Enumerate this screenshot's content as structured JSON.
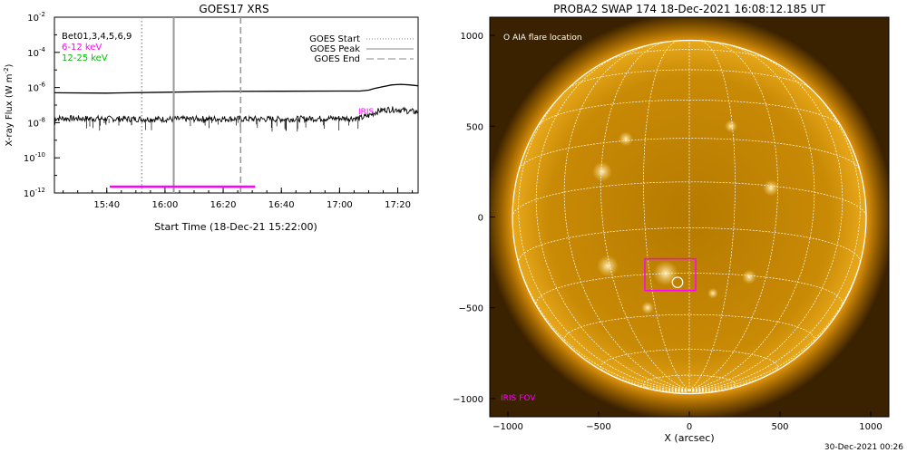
{
  "timestamp": "30-Dec-2021 00:26",
  "chart_data": [
    {
      "type": "line",
      "title": "GOES17 XRS",
      "xlabel": "Start Time (18-Dec-21 15:22:00)",
      "ylabel": "X-ray Flux (W m-2)",
      "ylabel_parts": [
        "X-ray Flux (W m",
        "-2",
        ")"
      ],
      "yscale": "log",
      "ylim_exp": [
        -12,
        -2
      ],
      "ytick_exps": [
        -12,
        -10,
        -8,
        -6,
        -4,
        -2
      ],
      "ytick_base": "10",
      "xlim": [
        "15:22",
        "17:27"
      ],
      "xticks": [
        "15:40",
        "16:00",
        "16:20",
        "16:40",
        "17:00",
        "17:20"
      ],
      "left_legend": [
        {
          "text": "Bet01,3,4,5,6,9",
          "color": "#000000"
        },
        {
          "text": "6-12 keV",
          "color": "#ff00ff"
        },
        {
          "text": "12-25 keV",
          "color": "#00c000"
        }
      ],
      "right_legend": [
        {
          "text": "GOES Start",
          "style": "dotted"
        },
        {
          "text": "GOES Peak",
          "style": "solid"
        },
        {
          "text": "GOES End",
          "style": "dashed"
        }
      ],
      "goes_start": "15:52",
      "goes_peak": "16:03",
      "goes_end": "16:26",
      "iris_label": "IRIS",
      "iris_interval": [
        "15:41",
        "16:31"
      ],
      "series": [
        {
          "name": "Bet01,3,4,5,6,9",
          "color": "#000000",
          "x": [
            "15:22",
            "15:40",
            "16:00",
            "16:20",
            "16:40",
            "17:00",
            "17:07",
            "17:10",
            "17:12",
            "17:15",
            "17:18",
            "17:21",
            "17:24",
            "17:27"
          ],
          "y_exp": [
            -6.3,
            -6.32,
            -6.27,
            -6.22,
            -6.21,
            -6.2,
            -6.2,
            -6.15,
            -6.05,
            -5.95,
            -5.85,
            -5.82,
            -5.85,
            -5.9
          ]
        },
        {
          "name": "noisy-band",
          "color": "#000000",
          "x": [
            "15:22",
            "15:40",
            "16:00",
            "16:20",
            "16:40",
            "17:00",
            "17:07",
            "17:10",
            "17:13",
            "17:16",
            "17:20",
            "17:24",
            "17:27"
          ],
          "y_exp": [
            -7.75,
            -7.78,
            -7.8,
            -7.78,
            -7.8,
            -7.75,
            -7.75,
            -7.6,
            -7.35,
            -7.25,
            -7.25,
            -7.35,
            -7.4
          ]
        }
      ]
    },
    {
      "type": "scatter",
      "title": "PROBA2 SWAP 174 18-Dec-2021 16:08:12.185 UT",
      "xlabel": "X (arcsec)",
      "ylabel": "",
      "xlim": [
        -1100,
        1100
      ],
      "ylim": [
        -1100,
        1100
      ],
      "xticks": [
        -1000,
        -500,
        0,
        500,
        1000
      ],
      "yticks": [
        -1000,
        -500,
        0,
        500,
        1000
      ],
      "grid": "heliographic 15 deg",
      "solar_radius_arcsec": 975,
      "aia_legend": "O AIA flare location",
      "aia_flare": {
        "x": -65,
        "y": -360,
        "r": 115
      },
      "iris_fov_label": "IRIS FOV",
      "iris_fov": {
        "x0": -245,
        "x1": 35,
        "y0": -405,
        "y1": -230
      },
      "colors": {
        "disk": "#c88400",
        "bg": "#3a2100",
        "grid": "#ffffff",
        "fov": "#ff00ff"
      }
    }
  ]
}
